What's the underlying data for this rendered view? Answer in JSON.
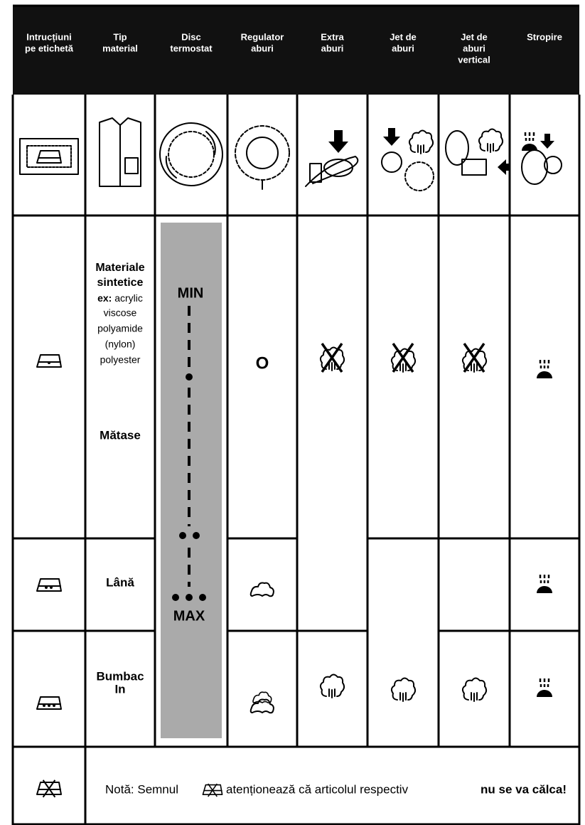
{
  "header": {
    "columns": [
      [
        "Intrucțiuni",
        "pe etichetă"
      ],
      [
        "Tip",
        "material"
      ],
      [
        "Disc",
        "termostat"
      ],
      [
        "Regulator",
        "aburi"
      ],
      [
        "Extra",
        "aburi"
      ],
      [
        "Jet de",
        "aburi"
      ],
      [
        "Jet de",
        "aburi",
        "vertical"
      ],
      [
        "Stropire"
      ]
    ]
  },
  "materials": {
    "synthetic": [
      "Materiale",
      "sintetice"
    ],
    "example_label": "ex:",
    "example_first": "acrylic",
    "examples": [
      "viscose",
      "polyamide",
      "(nylon)",
      "polyester"
    ],
    "silk": "Mătase",
    "wool": "Lână",
    "cotton": [
      "Bumbac",
      "In"
    ]
  },
  "thermostat": {
    "min": "MIN",
    "max": "MAX"
  },
  "steam_regulator_off": "O",
  "note": {
    "prefix": "Notă: Semnul",
    "middle": "atenționează că articolul respectiv",
    "emphasis": "nu se va călca!"
  }
}
